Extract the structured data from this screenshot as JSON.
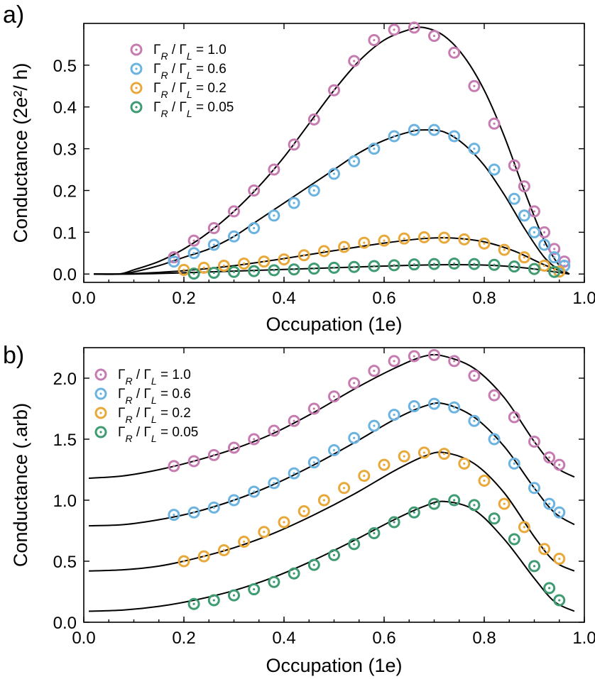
{
  "chart_data": [
    {
      "panel": "a)",
      "type": "scatter",
      "xlabel": "Occupation (1e)",
      "ylabel": "Conductance (2e²/ h)",
      "xlim": [
        0.0,
        1.0
      ],
      "ylim": [
        -0.02,
        0.6
      ],
      "xticks": [
        "0.0",
        "0.2",
        "0.4",
        "0.6",
        "0.8",
        "1.0"
      ],
      "yticks": [
        "0.0",
        "0.1",
        "0.2",
        "0.3",
        "0.4",
        "0.5"
      ],
      "legend_position": "top-left",
      "series": [
        {
          "name": "Γ_R / Γ_L = 1.0",
          "color": "#c77cb1",
          "x": [
            0.18,
            0.22,
            0.26,
            0.3,
            0.34,
            0.38,
            0.42,
            0.46,
            0.5,
            0.54,
            0.58,
            0.62,
            0.66,
            0.7,
            0.74,
            0.78,
            0.82,
            0.86,
            0.88,
            0.9,
            0.92,
            0.94,
            0.96
          ],
          "y": [
            0.04,
            0.08,
            0.11,
            0.15,
            0.2,
            0.25,
            0.31,
            0.37,
            0.44,
            0.51,
            0.56,
            0.585,
            0.59,
            0.57,
            0.53,
            0.45,
            0.36,
            0.26,
            0.21,
            0.15,
            0.1,
            0.06,
            0.03
          ],
          "fit": {
            "x": [
              0.02,
              0.07,
              0.1,
              0.15,
              0.2,
              0.25,
              0.3,
              0.35,
              0.4,
              0.45,
              0.5,
              0.55,
              0.6,
              0.65,
              0.68,
              0.72,
              0.76,
              0.8,
              0.84,
              0.88,
              0.92,
              0.95,
              0.97
            ],
            "y": [
              0.0,
              0.0,
              0.01,
              0.03,
              0.06,
              0.1,
              0.15,
              0.21,
              0.28,
              0.36,
              0.44,
              0.51,
              0.56,
              0.585,
              0.59,
              0.57,
              0.52,
              0.44,
              0.33,
              0.2,
              0.08,
              0.02,
              0.0
            ]
          }
        },
        {
          "name": "Γ_R / Γ_L = 0.6",
          "color": "#6bb3e0",
          "x": [
            0.18,
            0.22,
            0.26,
            0.3,
            0.34,
            0.38,
            0.42,
            0.46,
            0.5,
            0.54,
            0.58,
            0.62,
            0.66,
            0.7,
            0.74,
            0.78,
            0.82,
            0.86,
            0.88,
            0.9,
            0.92,
            0.94,
            0.96
          ],
          "y": [
            0.03,
            0.05,
            0.07,
            0.09,
            0.11,
            0.14,
            0.17,
            0.2,
            0.24,
            0.27,
            0.3,
            0.33,
            0.345,
            0.345,
            0.33,
            0.3,
            0.25,
            0.18,
            0.14,
            0.1,
            0.07,
            0.04,
            0.02
          ],
          "fit": {
            "x": [
              0.02,
              0.07,
              0.1,
              0.15,
              0.2,
              0.25,
              0.3,
              0.35,
              0.4,
              0.45,
              0.5,
              0.55,
              0.6,
              0.65,
              0.68,
              0.72,
              0.76,
              0.8,
              0.84,
              0.88,
              0.92,
              0.95,
              0.97
            ],
            "y": [
              0.0,
              0.0,
              0.005,
              0.02,
              0.04,
              0.06,
              0.09,
              0.13,
              0.17,
              0.21,
              0.25,
              0.29,
              0.32,
              0.34,
              0.345,
              0.34,
              0.31,
              0.26,
              0.19,
              0.11,
              0.04,
              0.01,
              0.0
            ]
          }
        },
        {
          "name": "Γ_R / Γ_L = 0.2",
          "color": "#e8a93a",
          "x": [
            0.2,
            0.24,
            0.28,
            0.32,
            0.36,
            0.4,
            0.44,
            0.48,
            0.52,
            0.56,
            0.6,
            0.64,
            0.68,
            0.72,
            0.76,
            0.8,
            0.84,
            0.88,
            0.92,
            0.95
          ],
          "y": [
            0.01,
            0.015,
            0.02,
            0.025,
            0.03,
            0.035,
            0.045,
            0.055,
            0.065,
            0.075,
            0.08,
            0.085,
            0.088,
            0.087,
            0.083,
            0.073,
            0.058,
            0.04,
            0.02,
            0.006
          ],
          "fit": {
            "x": [
              0.02,
              0.1,
              0.2,
              0.3,
              0.4,
              0.5,
              0.6,
              0.68,
              0.74,
              0.8,
              0.86,
              0.92,
              0.97
            ],
            "y": [
              0.0,
              0.001,
              0.008,
              0.02,
              0.037,
              0.056,
              0.074,
              0.085,
              0.086,
              0.077,
              0.055,
              0.022,
              0.0
            ]
          }
        },
        {
          "name": "Γ_R / Γ_L = 0.05",
          "color": "#3f9c72",
          "x": [
            0.22,
            0.26,
            0.3,
            0.34,
            0.38,
            0.42,
            0.46,
            0.5,
            0.54,
            0.58,
            0.62,
            0.66,
            0.7,
            0.74,
            0.78,
            0.82,
            0.86,
            0.9,
            0.94
          ],
          "y": [
            0.001,
            0.003,
            0.005,
            0.007,
            0.009,
            0.011,
            0.013,
            0.015,
            0.017,
            0.019,
            0.021,
            0.023,
            0.024,
            0.025,
            0.024,
            0.022,
            0.018,
            0.012,
            0.005
          ],
          "fit": {
            "x": [
              0.02,
              0.1,
              0.2,
              0.3,
              0.4,
              0.5,
              0.6,
              0.7,
              0.78,
              0.84,
              0.9,
              0.97
            ],
            "y": [
              0.0,
              0.0,
              0.003,
              0.007,
              0.011,
              0.015,
              0.019,
              0.022,
              0.022,
              0.019,
              0.012,
              0.0
            ]
          }
        }
      ]
    },
    {
      "panel": "b)",
      "type": "scatter",
      "xlabel": "Occupation (1e)",
      "ylabel": "Conductance (.arb)",
      "xlim": [
        0.0,
        1.0
      ],
      "ylim": [
        0.0,
        2.25
      ],
      "xticks": [
        "0.0",
        "0.2",
        "0.4",
        "0.6",
        "0.8",
        "1.0"
      ],
      "yticks": [
        "0.0",
        "0.5",
        "1.0",
        "1.5",
        "2.0"
      ],
      "legend_position": "top-left",
      "series": [
        {
          "name": "Γ_R / Γ_L = 1.0",
          "color": "#c77cb1",
          "x": [
            0.18,
            0.22,
            0.26,
            0.3,
            0.34,
            0.38,
            0.42,
            0.46,
            0.5,
            0.54,
            0.58,
            0.62,
            0.66,
            0.7,
            0.74,
            0.78,
            0.82,
            0.86,
            0.9,
            0.93,
            0.95
          ],
          "y": [
            1.28,
            1.32,
            1.37,
            1.43,
            1.5,
            1.57,
            1.65,
            1.75,
            1.85,
            1.96,
            2.06,
            2.14,
            2.18,
            2.19,
            2.14,
            2.02,
            1.86,
            1.68,
            1.48,
            1.35,
            1.29
          ],
          "fit": {
            "x": [
              0.01,
              0.08,
              0.15,
              0.22,
              0.3,
              0.38,
              0.46,
              0.54,
              0.62,
              0.68,
              0.72,
              0.78,
              0.84,
              0.9,
              0.94,
              0.98
            ],
            "y": [
              1.18,
              1.2,
              1.25,
              1.32,
              1.42,
              1.55,
              1.72,
              1.91,
              2.08,
              2.18,
              2.18,
              2.08,
              1.84,
              1.48,
              1.28,
              1.19
            ]
          }
        },
        {
          "name": "Γ_R / Γ_L = 0.6",
          "color": "#6bb3e0",
          "x": [
            0.18,
            0.22,
            0.26,
            0.3,
            0.34,
            0.38,
            0.42,
            0.46,
            0.5,
            0.54,
            0.58,
            0.62,
            0.66,
            0.7,
            0.74,
            0.78,
            0.82,
            0.86,
            0.9,
            0.93,
            0.95
          ],
          "y": [
            0.88,
            0.9,
            0.94,
            1.0,
            1.07,
            1.14,
            1.22,
            1.31,
            1.41,
            1.51,
            1.61,
            1.7,
            1.77,
            1.79,
            1.76,
            1.65,
            1.5,
            1.3,
            1.1,
            0.97,
            0.9
          ],
          "fit": {
            "x": [
              0.01,
              0.08,
              0.15,
              0.22,
              0.3,
              0.38,
              0.46,
              0.54,
              0.62,
              0.68,
              0.72,
              0.78,
              0.84,
              0.9,
              0.94,
              0.98
            ],
            "y": [
              0.79,
              0.8,
              0.84,
              0.9,
              1.0,
              1.13,
              1.29,
              1.47,
              1.66,
              1.77,
              1.79,
              1.68,
              1.44,
              1.1,
              0.9,
              0.8
            ]
          }
        },
        {
          "name": "Γ_R / Γ_L = 0.2",
          "color": "#e8a93a",
          "x": [
            0.2,
            0.24,
            0.28,
            0.32,
            0.36,
            0.4,
            0.44,
            0.48,
            0.52,
            0.56,
            0.6,
            0.64,
            0.68,
            0.72,
            0.76,
            0.8,
            0.84,
            0.88,
            0.92,
            0.95
          ],
          "y": [
            0.5,
            0.54,
            0.59,
            0.66,
            0.74,
            0.82,
            0.91,
            1.0,
            1.1,
            1.2,
            1.29,
            1.36,
            1.39,
            1.38,
            1.3,
            1.16,
            0.97,
            0.78,
            0.6,
            0.52
          ],
          "fit": {
            "x": [
              0.01,
              0.08,
              0.15,
              0.22,
              0.3,
              0.38,
              0.46,
              0.54,
              0.62,
              0.68,
              0.72,
              0.78,
              0.84,
              0.9,
              0.94,
              0.98
            ],
            "y": [
              0.42,
              0.43,
              0.46,
              0.52,
              0.61,
              0.73,
              0.88,
              1.05,
              1.24,
              1.36,
              1.39,
              1.3,
              1.06,
              0.7,
              0.5,
              0.42
            ]
          }
        },
        {
          "name": "Γ_R / Γ_L = 0.05",
          "color": "#3f9c72",
          "x": [
            0.22,
            0.26,
            0.3,
            0.34,
            0.38,
            0.42,
            0.46,
            0.5,
            0.54,
            0.58,
            0.62,
            0.66,
            0.7,
            0.74,
            0.78,
            0.82,
            0.86,
            0.9,
            0.93,
            0.95
          ],
          "y": [
            0.15,
            0.18,
            0.22,
            0.27,
            0.33,
            0.4,
            0.47,
            0.55,
            0.64,
            0.73,
            0.82,
            0.9,
            0.97,
            1.0,
            0.96,
            0.85,
            0.68,
            0.46,
            0.28,
            0.18
          ],
          "fit": {
            "x": [
              0.01,
              0.08,
              0.15,
              0.22,
              0.3,
              0.38,
              0.46,
              0.54,
              0.62,
              0.68,
              0.72,
              0.78,
              0.84,
              0.9,
              0.94,
              0.98
            ],
            "y": [
              0.09,
              0.1,
              0.13,
              0.18,
              0.26,
              0.37,
              0.51,
              0.67,
              0.84,
              0.95,
              0.99,
              0.92,
              0.68,
              0.36,
              0.17,
              0.09
            ]
          }
        }
      ]
    }
  ]
}
